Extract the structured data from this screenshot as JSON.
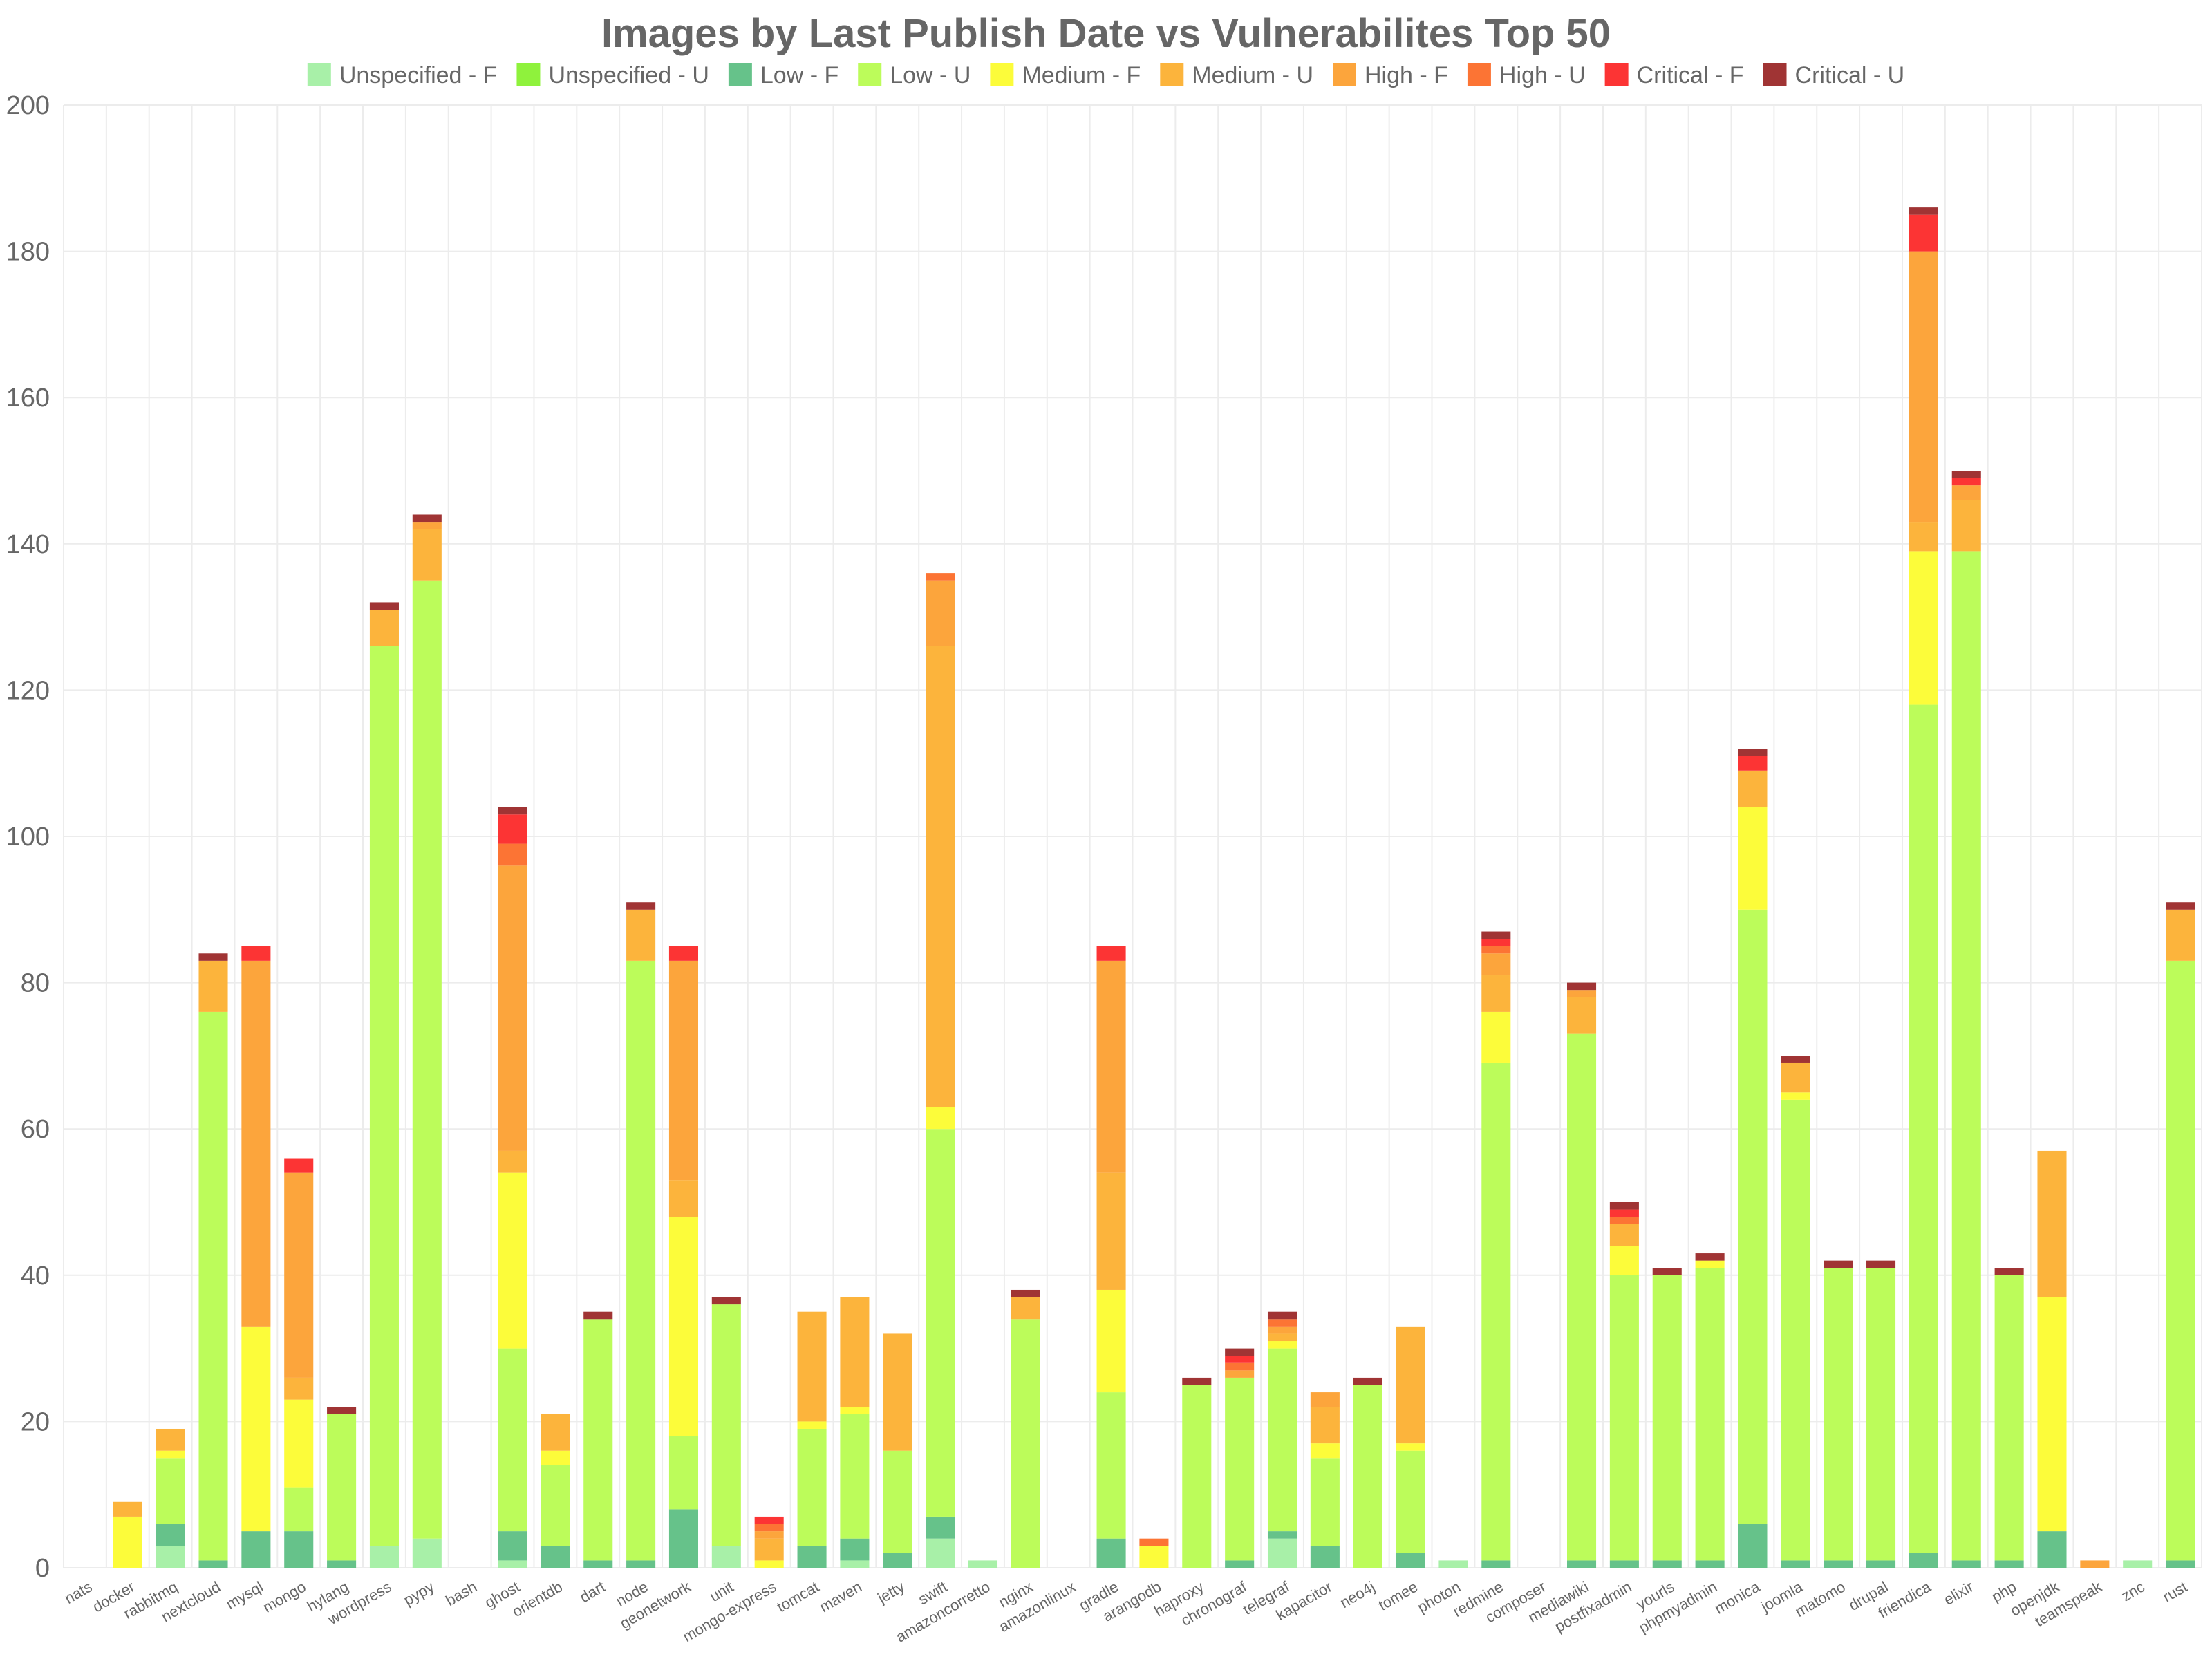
{
  "chart_data": {
    "type": "bar",
    "stacked": true,
    "title": "Images by Last Publish Date vs Vulnerabilites Top 50",
    "xlabel": "",
    "ylabel": "",
    "ylim": [
      0,
      200
    ],
    "yticks": [
      0,
      20,
      40,
      60,
      80,
      100,
      120,
      140,
      160,
      180,
      200
    ],
    "grid": true,
    "legend_position": "top",
    "categories": [
      "nats",
      "docker",
      "rabbitmq",
      "nextcloud",
      "mysql",
      "mongo",
      "hylang",
      "wordpress",
      "pypy",
      "bash",
      "ghost",
      "orientdb",
      "dart",
      "node",
      "geonetwork",
      "unit",
      "mongo-express",
      "tomcat",
      "maven",
      "jetty",
      "swift",
      "amazoncorretto",
      "nginx",
      "amazonlinux",
      "gradle",
      "arangodb",
      "haproxy",
      "chronograf",
      "telegraf",
      "kapacitor",
      "neo4j",
      "tomee",
      "photon",
      "redmine",
      "composer",
      "mediawiki",
      "postfixadmin",
      "yourls",
      "phpmyadmin",
      "monica",
      "joomla",
      "matomo",
      "drupal",
      "friendica",
      "elixir",
      "php",
      "openjdk",
      "teamspeak",
      "znc",
      "rust"
    ],
    "series": [
      {
        "name": "Unspecified - F",
        "color": "#a8f0a8",
        "values": [
          0,
          0,
          3,
          0,
          0,
          0,
          0,
          3,
          4,
          0,
          1,
          0,
          0,
          0,
          0,
          3,
          0,
          0,
          1,
          0,
          4,
          1,
          0,
          0,
          0,
          0,
          0,
          0,
          4,
          0,
          0,
          0,
          1,
          0,
          0,
          0,
          0,
          0,
          0,
          0,
          0,
          0,
          0,
          0,
          0,
          0,
          0,
          0,
          1,
          0
        ]
      },
      {
        "name": "Unspecified - U",
        "color": "#8ff23c",
        "values": [
          0,
          0,
          0,
          0,
          0,
          0,
          0,
          0,
          0,
          0,
          0,
          0,
          0,
          0,
          0,
          0,
          0,
          0,
          0,
          0,
          0,
          0,
          0,
          0,
          0,
          0,
          0,
          0,
          0,
          0,
          0,
          0,
          0,
          0,
          0,
          0,
          0,
          0,
          0,
          0,
          0,
          0,
          0,
          0,
          0,
          0,
          0,
          0,
          0,
          0
        ]
      },
      {
        "name": "Low - F",
        "color": "#66c28a",
        "values": [
          0,
          0,
          3,
          1,
          5,
          5,
          1,
          0,
          0,
          0,
          4,
          3,
          1,
          1,
          8,
          0,
          0,
          3,
          3,
          2,
          3,
          0,
          0,
          0,
          4,
          0,
          0,
          1,
          1,
          3,
          0,
          2,
          0,
          1,
          0,
          1,
          1,
          1,
          1,
          6,
          1,
          1,
          1,
          2,
          1,
          1,
          5,
          0,
          0,
          1
        ]
      },
      {
        "name": "Low - U",
        "color": "#bcfc5a",
        "values": [
          0,
          0,
          9,
          75,
          0,
          6,
          20,
          123,
          131,
          0,
          25,
          11,
          33,
          82,
          10,
          33,
          0,
          16,
          17,
          14,
          53,
          0,
          34,
          0,
          20,
          0,
          25,
          25,
          25,
          12,
          25,
          14,
          0,
          68,
          0,
          72,
          39,
          39,
          40,
          84,
          63,
          40,
          40,
          116,
          138,
          39,
          0,
          0,
          0,
          82
        ]
      },
      {
        "name": "Medium - F",
        "color": "#fcfc3a",
        "values": [
          0,
          7,
          1,
          0,
          28,
          12,
          0,
          0,
          0,
          0,
          24,
          2,
          0,
          0,
          30,
          0,
          1,
          1,
          1,
          0,
          3,
          0,
          0,
          0,
          14,
          3,
          0,
          0,
          1,
          2,
          0,
          1,
          0,
          7,
          0,
          0,
          4,
          0,
          1,
          14,
          1,
          0,
          0,
          21,
          0,
          0,
          32,
          0,
          0,
          0
        ]
      },
      {
        "name": "Medium - U",
        "color": "#fcb43c",
        "values": [
          0,
          2,
          3,
          7,
          0,
          3,
          0,
          5,
          7,
          0,
          3,
          5,
          0,
          7,
          5,
          0,
          3,
          15,
          15,
          16,
          63,
          0,
          3,
          0,
          16,
          0,
          0,
          0,
          1,
          5,
          0,
          16,
          0,
          5,
          0,
          5,
          3,
          0,
          0,
          5,
          4,
          0,
          0,
          4,
          7,
          0,
          20,
          0,
          0,
          7
        ]
      },
      {
        "name": "High - F",
        "color": "#fca53c",
        "values": [
          0,
          0,
          0,
          0,
          50,
          28,
          0,
          0,
          1,
          0,
          39,
          0,
          0,
          0,
          30,
          0,
          1,
          0,
          0,
          0,
          9,
          0,
          0,
          0,
          29,
          0,
          0,
          1,
          1,
          2,
          0,
          0,
          0,
          3,
          0,
          1,
          0,
          0,
          0,
          0,
          0,
          0,
          0,
          37,
          2,
          0,
          0,
          1,
          0,
          0
        ]
      },
      {
        "name": "High - U",
        "color": "#fc7434",
        "values": [
          0,
          0,
          0,
          0,
          0,
          0,
          0,
          0,
          0,
          0,
          3,
          0,
          0,
          0,
          0,
          0,
          1,
          0,
          0,
          0,
          1,
          0,
          0,
          0,
          0,
          1,
          0,
          1,
          1,
          0,
          0,
          0,
          0,
          1,
          0,
          0,
          1,
          0,
          0,
          0,
          0,
          0,
          0,
          0,
          0,
          0,
          0,
          0,
          0,
          0
        ]
      },
      {
        "name": "Critical - F",
        "color": "#fc3434",
        "values": [
          0,
          0,
          0,
          0,
          2,
          2,
          0,
          0,
          0,
          0,
          4,
          0,
          0,
          0,
          2,
          0,
          1,
          0,
          0,
          0,
          0,
          0,
          0,
          0,
          2,
          0,
          0,
          1,
          0,
          0,
          0,
          0,
          0,
          1,
          0,
          0,
          1,
          0,
          0,
          2,
          0,
          0,
          0,
          5,
          1,
          0,
          0,
          0,
          0,
          0
        ]
      },
      {
        "name": "Critical - U",
        "color": "#a03434",
        "values": [
          0,
          0,
          0,
          1,
          0,
          0,
          1,
          1,
          1,
          0,
          1,
          0,
          1,
          1,
          0,
          1,
          0,
          0,
          0,
          0,
          0,
          0,
          1,
          0,
          0,
          0,
          1,
          1,
          1,
          0,
          1,
          0,
          0,
          1,
          0,
          1,
          1,
          1,
          1,
          1,
          1,
          1,
          1,
          1,
          1,
          1,
          0,
          0,
          0,
          1
        ]
      }
    ]
  }
}
